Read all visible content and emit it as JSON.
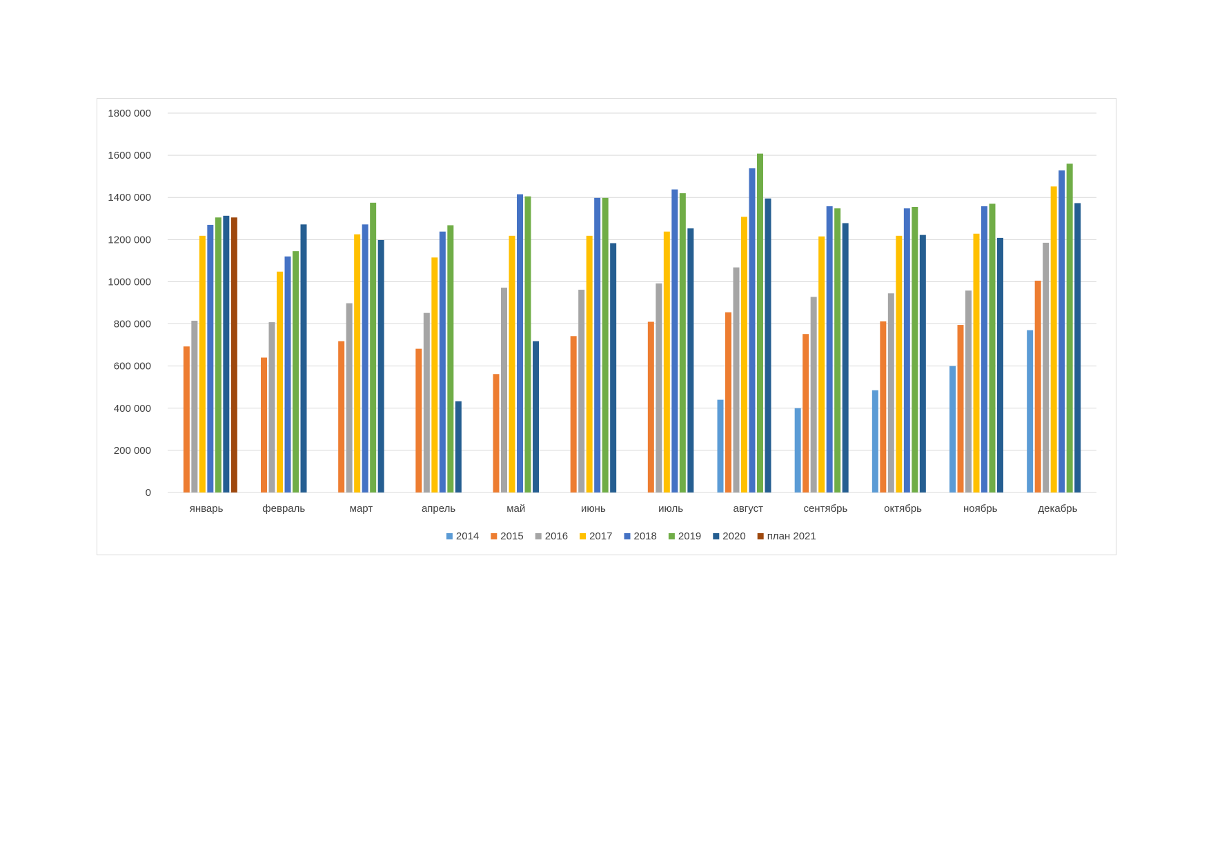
{
  "chart_data": {
    "type": "bar",
    "title": "",
    "xlabel": "",
    "ylabel": "",
    "ylim": [
      0,
      1800000
    ],
    "yticks": [
      0,
      200000,
      400000,
      600000,
      800000,
      1000000,
      1200000,
      1400000,
      1600000,
      1800000
    ],
    "ytick_labels": [
      "0",
      "200 000",
      "400 000",
      "600 000",
      "800 000",
      "1000 000",
      "1200 000",
      "1400 000",
      "1600 000",
      "1800 000"
    ],
    "grid": true,
    "legend_position": "bottom",
    "categories": [
      "январь",
      "февраль",
      "март",
      "апрель",
      "май",
      "июнь",
      "июль",
      "август",
      "сентябрь",
      "октябрь",
      "ноябрь",
      "декабрь"
    ],
    "series": [
      {
        "name": "2014",
        "color": "#5B9BD5",
        "values": [
          null,
          null,
          null,
          null,
          null,
          null,
          null,
          440000,
          400000,
          485000,
          600000,
          770000
        ]
      },
      {
        "name": "2015",
        "color": "#ED7D31",
        "values": [
          693000,
          640000,
          718000,
          682000,
          562000,
          742000,
          810000,
          855000,
          752000,
          812000,
          795000,
          1005000
        ]
      },
      {
        "name": "2016",
        "color": "#A5A5A5",
        "values": [
          815000,
          808000,
          898000,
          852000,
          972000,
          962000,
          992000,
          1068000,
          928000,
          945000,
          958000,
          1185000
        ]
      },
      {
        "name": "2017",
        "color": "#FFC000",
        "values": [
          1218000,
          1048000,
          1225000,
          1115000,
          1218000,
          1218000,
          1238000,
          1308000,
          1215000,
          1218000,
          1228000,
          1452000
        ]
      },
      {
        "name": "2018",
        "color": "#4472C4",
        "values": [
          1270000,
          1120000,
          1272000,
          1238000,
          1415000,
          1398000,
          1438000,
          1538000,
          1358000,
          1348000,
          1358000,
          1528000
        ]
      },
      {
        "name": "2019",
        "color": "#70AD47",
        "values": [
          1305000,
          1145000,
          1375000,
          1268000,
          1405000,
          1398000,
          1420000,
          1608000,
          1348000,
          1355000,
          1370000,
          1560000
        ]
      },
      {
        "name": "2020",
        "color": "#255E91",
        "values": [
          1313000,
          1272000,
          1198000,
          433000,
          718000,
          1183000,
          1253000,
          1395000,
          1278000,
          1222000,
          1208000,
          1373000
        ]
      },
      {
        "name": "план 2021",
        "color": "#9E480E",
        "values": [
          1305000,
          null,
          null,
          null,
          null,
          null,
          null,
          null,
          null,
          null,
          null,
          null
        ]
      }
    ]
  }
}
